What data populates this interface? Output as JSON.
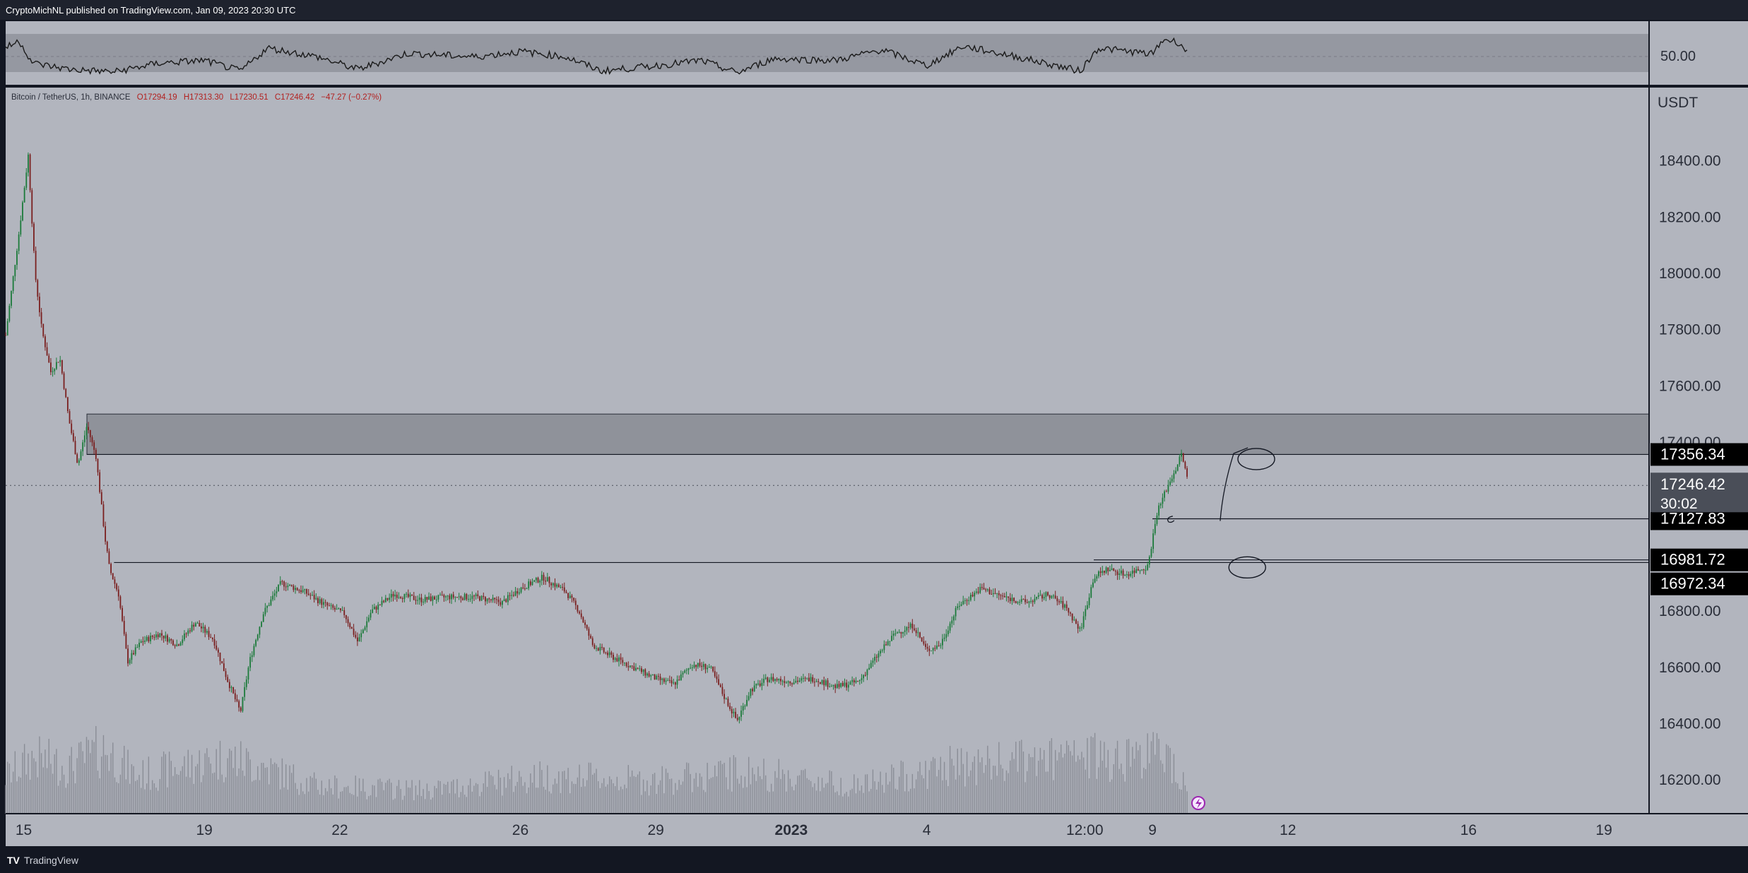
{
  "header": {
    "published_text": "CryptoMichNL published on TradingView.com, Jan 09, 2023 20:30 UTC"
  },
  "footer": {
    "logo_glyph": "TV",
    "brand": "TradingView"
  },
  "legend": {
    "symbol": "Bitcoin / TetherUS, 1h, BINANCE",
    "open": "O17294.19",
    "high": "H17313.30",
    "low": "L17230.51",
    "close": "C17246.42",
    "change": "−47.27 (−0.27%)"
  },
  "rsi": {
    "level_label": "50.00",
    "upper_band": 70,
    "lower_band": 30,
    "mid": 50
  },
  "colors": {
    "background": "#b2b5be",
    "panel_border": "#131722",
    "up_candle": "#1b7a3a",
    "down_candle": "#7a1f1f",
    "zone": "#8f929a",
    "volume": "#8a8d96",
    "level_tag_bg": "#000000",
    "current_price_tag_bg": "#4a4e58"
  },
  "chart_data": {
    "type": "candlestick",
    "symbol": "Bitcoin / TetherUS",
    "interval": "1h",
    "exchange": "BINANCE",
    "currency_label": "USDT",
    "ylim": [
      16080,
      18660
    ],
    "y_ticks": [
      {
        "value": 18400,
        "label": "18400.00"
      },
      {
        "value": 18200,
        "label": "18200.00"
      },
      {
        "value": 18000,
        "label": "18000.00"
      },
      {
        "value": 17800,
        "label": "17800.00"
      },
      {
        "value": 17600,
        "label": "17600.00"
      },
      {
        "value": 17400,
        "label": "17400.00"
      },
      {
        "value": 16800,
        "label": "16800.00"
      },
      {
        "value": 16600,
        "label": "16600.00"
      },
      {
        "value": 16400,
        "label": "16400.00"
      },
      {
        "value": 16200,
        "label": "16200.00"
      }
    ],
    "x_range_days": [
      14.6,
      19.9
    ],
    "x_ticks": [
      {
        "day": 15,
        "label": "15"
      },
      {
        "day": 19,
        "label": "19"
      },
      {
        "day": 22,
        "label": "22"
      },
      {
        "day": 26,
        "label": "26"
      },
      {
        "day": 29,
        "label": "29"
      },
      {
        "day": 32,
        "label": "2023",
        "bold": true
      },
      {
        "day": 35,
        "label": "4"
      },
      {
        "day": 38.5,
        "label": "12:00"
      },
      {
        "day": 40,
        "label": "9"
      },
      {
        "day": 43,
        "label": "12"
      },
      {
        "day": 47,
        "label": "16"
      },
      {
        "day": 50,
        "label": "19"
      }
    ],
    "price_path": [
      [
        14.6,
        17780
      ],
      [
        14.9,
        18150
      ],
      [
        15.1,
        18420
      ],
      [
        15.25,
        18000
      ],
      [
        15.4,
        17800
      ],
      [
        15.6,
        17650
      ],
      [
        15.8,
        17700
      ],
      [
        16.0,
        17480
      ],
      [
        16.2,
        17320
      ],
      [
        16.4,
        17460
      ],
      [
        16.6,
        17350
      ],
      [
        16.8,
        17060
      ],
      [
        16.9,
        16950
      ],
      [
        17.1,
        16860
      ],
      [
        17.3,
        16620
      ],
      [
        17.6,
        16690
      ],
      [
        18.0,
        16720
      ],
      [
        18.4,
        16680
      ],
      [
        18.8,
        16760
      ],
      [
        19.2,
        16700
      ],
      [
        19.5,
        16560
      ],
      [
        19.8,
        16440
      ],
      [
        20.0,
        16620
      ],
      [
        20.3,
        16790
      ],
      [
        20.7,
        16900
      ],
      [
        21.2,
        16870
      ],
      [
        21.7,
        16820
      ],
      [
        22.1,
        16790
      ],
      [
        22.4,
        16690
      ],
      [
        22.7,
        16800
      ],
      [
        23.2,
        16860
      ],
      [
        23.8,
        16840
      ],
      [
        24.4,
        16850
      ],
      [
        25.0,
        16850
      ],
      [
        25.6,
        16830
      ],
      [
        26.0,
        16880
      ],
      [
        26.5,
        16920
      ],
      [
        27.0,
        16870
      ],
      [
        27.3,
        16800
      ],
      [
        27.6,
        16680
      ],
      [
        28.0,
        16640
      ],
      [
        28.5,
        16600
      ],
      [
        29.0,
        16560
      ],
      [
        29.4,
        16540
      ],
      [
        29.8,
        16610
      ],
      [
        30.2,
        16600
      ],
      [
        30.5,
        16500
      ],
      [
        30.8,
        16410
      ],
      [
        31.1,
        16520
      ],
      [
        31.5,
        16560
      ],
      [
        32.0,
        16550
      ],
      [
        32.5,
        16560
      ],
      [
        33.0,
        16530
      ],
      [
        33.5,
        16550
      ],
      [
        33.9,
        16640
      ],
      [
        34.3,
        16720
      ],
      [
        34.7,
        16750
      ],
      [
        35.0,
        16660
      ],
      [
        35.3,
        16680
      ],
      [
        35.7,
        16820
      ],
      [
        36.2,
        16880
      ],
      [
        36.7,
        16850
      ],
      [
        37.2,
        16830
      ],
      [
        37.7,
        16860
      ],
      [
        38.1,
        16810
      ],
      [
        38.4,
        16730
      ],
      [
        38.7,
        16920
      ],
      [
        39.0,
        16950
      ],
      [
        39.4,
        16930
      ],
      [
        39.9,
        16960
      ],
      [
        40.1,
        17150
      ],
      [
        40.3,
        17230
      ],
      [
        40.5,
        17300
      ],
      [
        40.65,
        17360
      ],
      [
        40.8,
        17246
      ]
    ],
    "volume_profile": [
      [
        14.6,
        0.4
      ],
      [
        15.2,
        0.6
      ],
      [
        16.0,
        0.5
      ],
      [
        16.8,
        0.7
      ],
      [
        17.5,
        0.4
      ],
      [
        19.5,
        0.6
      ],
      [
        20.3,
        0.5
      ],
      [
        21.5,
        0.3
      ],
      [
        24.0,
        0.25
      ],
      [
        26.5,
        0.4
      ],
      [
        29.0,
        0.35
      ],
      [
        31.0,
        0.45
      ],
      [
        33.5,
        0.3
      ],
      [
        35.5,
        0.5
      ],
      [
        38.5,
        0.6
      ],
      [
        40.3,
        0.65
      ],
      [
        40.8,
        0.3
      ]
    ],
    "rsi_path": [
      [
        14.6,
        62
      ],
      [
        14.9,
        70
      ],
      [
        15.2,
        45
      ],
      [
        16.0,
        38
      ],
      [
        17.0,
        35
      ],
      [
        18.0,
        45
      ],
      [
        19.0,
        48
      ],
      [
        19.8,
        36
      ],
      [
        20.4,
        62
      ],
      [
        21.5,
        52
      ],
      [
        22.4,
        38
      ],
      [
        23.5,
        56
      ],
      [
        25.0,
        52
      ],
      [
        26.0,
        58
      ],
      [
        27.0,
        52
      ],
      [
        27.8,
        36
      ],
      [
        29.0,
        42
      ],
      [
        30.0,
        48
      ],
      [
        30.8,
        34
      ],
      [
        31.6,
        50
      ],
      [
        33.0,
        48
      ],
      [
        34.0,
        60
      ],
      [
        35.0,
        42
      ],
      [
        35.8,
        64
      ],
      [
        37.0,
        52
      ],
      [
        38.4,
        36
      ],
      [
        38.8,
        62
      ],
      [
        40.0,
        55
      ],
      [
        40.25,
        72
      ],
      [
        40.6,
        68
      ],
      [
        40.8,
        54
      ]
    ],
    "resistance_zone": {
      "low": 17356.34,
      "high": 17500,
      "start_day": 16.4
    },
    "levels": [
      {
        "value": 17356.34,
        "label": "17356.34"
      },
      {
        "value": 17127.83,
        "label": "17127.83",
        "start_day": 40.0
      },
      {
        "value": 16981.72,
        "label": "16981.72",
        "start_day": 38.7
      },
      {
        "value": 16972.34,
        "label": "16972.34",
        "start_day": 17.0
      }
    ],
    "current_price": {
      "value": 17246.42,
      "label": "17246.42",
      "countdown": "30:02"
    },
    "annotations": [
      {
        "type": "arrow",
        "from": [
          41.5,
          17120
        ],
        "to": [
          41.8,
          17360
        ]
      },
      {
        "type": "ellipse",
        "center": [
          42.3,
          17340
        ]
      },
      {
        "type": "ellipse",
        "center": [
          42.1,
          16955
        ]
      }
    ]
  }
}
